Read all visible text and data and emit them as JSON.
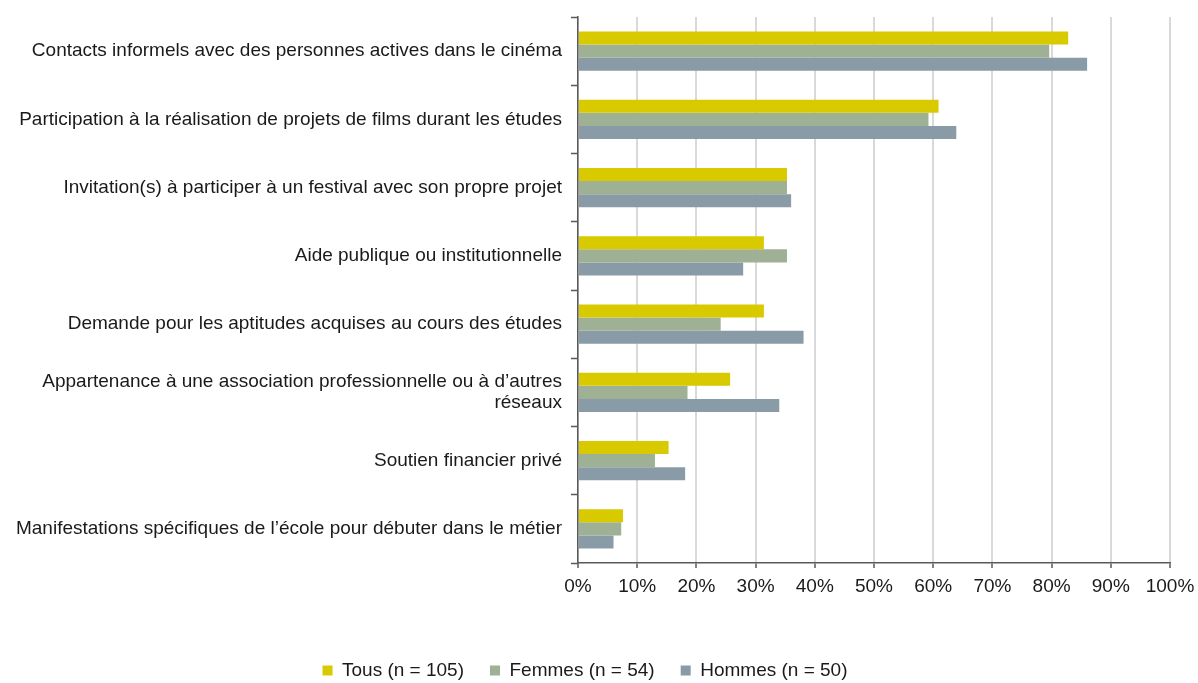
{
  "chart_data": {
    "type": "bar",
    "orientation": "horizontal",
    "categories": [
      "Contacts informels avec des personnes actives dans le cinéma",
      "Participation à la réalisation de projets de films durant les études",
      "Invitation(s) à participer à un festival avec son propre projet",
      "Aide publique ou institutionnelle",
      "Demande pour les aptitudes acquises au cours des études",
      "Appartenance à une association professionnelle ou à d’autres réseaux",
      "Soutien financier privé",
      "Manifestations spécifiques de l’école pour débuter dans le métier"
    ],
    "series": [
      {
        "name": "Tous (n = 105)",
        "color": "#d9ca00",
        "values": [
          82.8,
          60.9,
          35.3,
          31.4,
          31.4,
          25.7,
          15.3,
          7.6
        ]
      },
      {
        "name": "Femmes (n = 54)",
        "color": "#9eb195",
        "values": [
          79.6,
          59.2,
          35.3,
          35.3,
          24.1,
          18.5,
          13.0,
          7.3
        ]
      },
      {
        "name": "Hommes (n = 50)",
        "color": "#889ba6",
        "values": [
          86.0,
          63.9,
          36.0,
          27.9,
          38.1,
          34.0,
          18.1,
          6.0
        ]
      }
    ],
    "xlim": [
      0,
      100
    ],
    "xticks": [
      {
        "value": 0,
        "label": "0%"
      },
      {
        "value": 10,
        "label": "10%"
      },
      {
        "value": 20,
        "label": "20%"
      },
      {
        "value": 30,
        "label": "30%"
      },
      {
        "value": 40,
        "label": "40%"
      },
      {
        "value": 50,
        "label": "50%"
      },
      {
        "value": 60,
        "label": "60%"
      },
      {
        "value": 70,
        "label": "70%"
      },
      {
        "value": 80,
        "label": "80%"
      },
      {
        "value": 90,
        "label": "90%"
      },
      {
        "value": 100,
        "label": "100%"
      }
    ],
    "grid": "x",
    "legend": "bottom"
  }
}
